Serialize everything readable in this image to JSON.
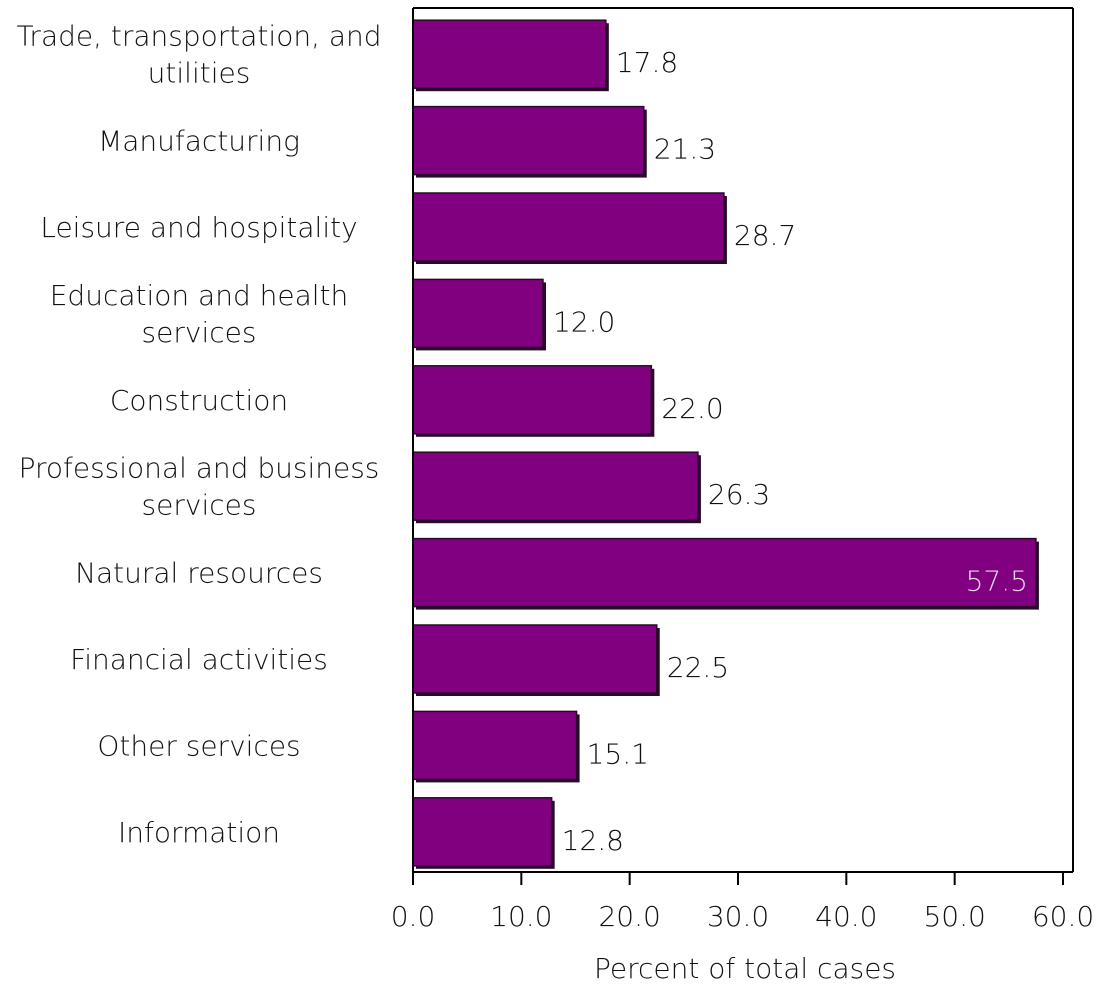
{
  "chart_data": {
    "type": "bar",
    "orientation": "horizontal",
    "categories": [
      [
        "Trade, transportation, and",
        "utilities"
      ],
      [
        "Manufacturing"
      ],
      [
        "Leisure and hospitality"
      ],
      [
        "Education and health",
        "services"
      ],
      [
        "Construction"
      ],
      [
        "Professional and business",
        "services"
      ],
      [
        "Natural resources"
      ],
      [
        "Financial activities"
      ],
      [
        "Other services"
      ],
      [
        "Information"
      ]
    ],
    "values": [
      17.8,
      21.3,
      28.7,
      12.0,
      22.0,
      26.3,
      57.5,
      22.5,
      15.1,
      12.8
    ],
    "value_labels": [
      "17.8",
      "21.3",
      "28.7",
      "12.0",
      "22.0",
      "26.3",
      "57.5",
      "22.5",
      "15.1",
      "12.8"
    ],
    "xlabel": "Percent of total cases",
    "xlim": [
      0,
      60
    ],
    "ticks": [
      "0.0",
      "10.0",
      "20.0",
      "30.0",
      "40.0",
      "50.0",
      "60.0"
    ],
    "grid": false,
    "bar_color": "#800080",
    "bar_edge_color": "#2a0a2a",
    "inside_label_color": "#e8d8e8",
    "outside_label_color": "#111111"
  }
}
